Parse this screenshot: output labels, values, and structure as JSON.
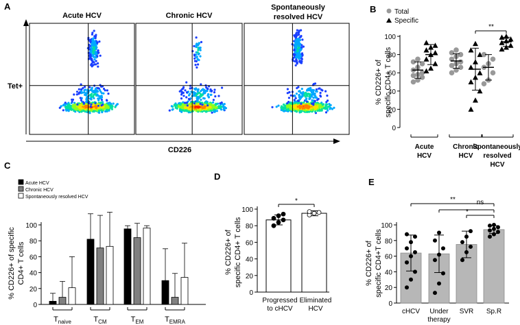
{
  "panel_letters": {
    "a": "A",
    "b": "B",
    "c": "C",
    "d": "D",
    "e": "E"
  },
  "panel_a": {
    "type": "flow-cytometry",
    "plot_titles": [
      "Acute HCV",
      "Chronic HCV",
      "Spontaneously resolved HCV"
    ],
    "ylabel": "Tet+",
    "xlabel": "CD226"
  },
  "chart_data": [
    {
      "id": "B",
      "type": "scatter",
      "title": "",
      "ylabel": "% CD226+ of specific CD4+ T cells",
      "ylim": [
        0,
        100
      ],
      "yticks": [
        0,
        20,
        40,
        60,
        80,
        100
      ],
      "legend": [
        {
          "name": "Total",
          "marker": "circle",
          "color": "#999999"
        },
        {
          "name": "Specific",
          "marker": "triangle",
          "color": "#000000"
        }
      ],
      "groups": [
        {
          "label": "Acute HCV",
          "total": {
            "mean": 63,
            "sd": 9,
            "values": [
              50,
              52,
              55,
              57,
              58,
              60,
              63,
              66,
              70,
              72,
              75
            ]
          },
          "specific": {
            "mean": 80,
            "sd": 11,
            "values": [
              62,
              65,
              70,
              75,
              80,
              82,
              85,
              88,
              90,
              93
            ]
          }
        },
        {
          "label": "Chronic HCV",
          "total": {
            "mean": 73,
            "sd": 8,
            "values": [
              60,
              63,
              66,
              68,
              70,
              72,
              75,
              78,
              80,
              82,
              85
            ]
          },
          "specific": {
            "mean": 64,
            "sd": 23,
            "values": [
              20,
              30,
              40,
              50,
              55,
              60,
              66,
              72,
              80,
              85,
              92
            ]
          }
        },
        {
          "label": "Spontaneously resolved HCV",
          "total": {
            "mean": 66,
            "sd": 14,
            "values": [
              48,
              52,
              60,
              66,
              70,
              75,
              80
            ]
          },
          "specific": {
            "mean": 94,
            "sd": 5,
            "values": [
              86,
              88,
              90,
              93,
              95,
              97,
              99,
              101
            ]
          }
        }
      ],
      "significance": [
        {
          "from": "Chronic HCV specific",
          "to": "Spontaneously resolved HCV specific",
          "label": "**"
        }
      ]
    },
    {
      "id": "C",
      "type": "bar",
      "ylabel": "% CD226+ of specific CD4+ T cells",
      "ylim": [
        0,
        100
      ],
      "yticks": [
        0,
        20,
        40,
        60,
        80,
        100
      ],
      "categories": [
        {
          "main": "T",
          "sub": "naive"
        },
        {
          "main": "T",
          "sub": "CM"
        },
        {
          "main": "T",
          "sub": "EM"
        },
        {
          "main": "T",
          "sub": "EMRA"
        }
      ],
      "legend_position": "top-left",
      "series": [
        {
          "name": "Acute HCV",
          "color": "#000000",
          "values": [
            4,
            82,
            95,
            30
          ],
          "err": [
            10,
            32,
            4,
            40
          ]
        },
        {
          "name": "Chronic HCV",
          "color": "#808080",
          "values": [
            9,
            71,
            84,
            9
          ],
          "err": [
            20,
            41,
            18,
            30
          ]
        },
        {
          "name": "Spontaneously resolved HCV",
          "color": "#ffffff",
          "values": [
            21,
            73,
            96,
            34
          ],
          "err": [
            39,
            43,
            3,
            43
          ]
        }
      ]
    },
    {
      "id": "D",
      "type": "bar",
      "ylabel": "% CD226+ of specific CD4+ T cells",
      "ylim": [
        0,
        100
      ],
      "yticks": [
        0,
        20,
        40,
        60,
        80,
        100
      ],
      "categories": [
        "Progressed to cHCV",
        "Eliminated HCV"
      ],
      "values": [
        87,
        95
      ],
      "err": [
        6,
        3
      ],
      "points": [
        [
          80,
          84,
          87,
          89,
          92,
          94
        ],
        [
          93,
          95,
          96,
          97
        ]
      ],
      "significance": [
        {
          "label": "*"
        }
      ]
    },
    {
      "id": "E",
      "type": "bar",
      "ylabel": "% CD226+ of specific CD4+T cells",
      "ylim": [
        0,
        100
      ],
      "yticks": [
        0,
        20,
        40,
        60,
        80,
        100
      ],
      "categories": [
        "cHCV",
        "Under therapy",
        "SVR",
        "Sp.R"
      ],
      "values": [
        64,
        63,
        75,
        94
      ],
      "err": [
        23,
        24,
        17,
        5
      ],
      "points": [
        [
          20,
          30,
          40,
          52,
          60,
          65,
          70,
          78,
          85,
          88
        ],
        [
          13,
          25,
          38,
          55,
          62,
          70,
          80,
          90
        ],
        [
          55,
          65,
          72,
          78,
          85,
          92
        ],
        [
          85,
          88,
          91,
          93,
          95,
          97,
          99,
          100
        ]
      ],
      "significance": [
        {
          "from": "cHCV",
          "to": "Sp.R",
          "label": "**"
        },
        {
          "from": "Under therapy",
          "to": "Sp.R",
          "label": "*"
        },
        {
          "from": "SVR",
          "to": "Sp.R",
          "label": "ns"
        }
      ]
    }
  ]
}
